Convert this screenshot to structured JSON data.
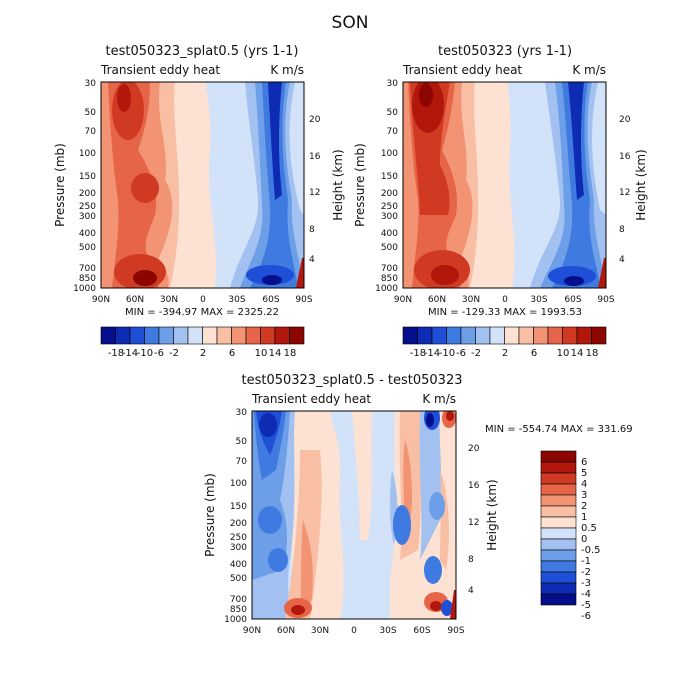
{
  "page_title": "SON",
  "chart_data": [
    {
      "type": "contour",
      "title": "test050323_splat0.5 (yrs 1-1)",
      "left_label": "Transient eddy heat",
      "right_label": "K m/s",
      "ylabel": "Pressure (mb)",
      "ylabel_right": "Height (km)",
      "x_ticks": [
        "90N",
        "60N",
        "30N",
        "0",
        "30S",
        "60S",
        "90S"
      ],
      "y_ticks": [
        "30",
        "50",
        "70",
        "100",
        "150",
        "200",
        "250",
        "300",
        "400",
        "500",
        "700",
        "850",
        "1000"
      ],
      "y_ticks_right": [
        "20",
        "16",
        "12",
        "8",
        "4"
      ],
      "min_max": "MIN = -394.97   MAX = 2325.22",
      "colorbar_labels": [
        "-18",
        "-14",
        "-10",
        "-6",
        "-2",
        "2",
        "6",
        "10",
        "14",
        "18"
      ]
    },
    {
      "type": "contour",
      "title": "test050323 (yrs 1-1)",
      "left_label": "Transient eddy heat",
      "right_label": "K m/s",
      "ylabel": "Pressure (mb)",
      "ylabel_right": "Height (km)",
      "x_ticks": [
        "90N",
        "60N",
        "30N",
        "0",
        "30S",
        "60S",
        "90S"
      ],
      "y_ticks": [
        "30",
        "50",
        "70",
        "100",
        "150",
        "200",
        "250",
        "300",
        "400",
        "500",
        "700",
        "850",
        "1000"
      ],
      "y_ticks_right": [
        "20",
        "16",
        "12",
        "8",
        "4"
      ],
      "min_max": "MIN = -129.33   MAX = 1993.53",
      "colorbar_labels": [
        "-18",
        "-14",
        "-10",
        "-6",
        "-2",
        "2",
        "6",
        "10",
        "14",
        "18"
      ]
    },
    {
      "type": "contour",
      "title": "test050323_splat0.5 - test050323",
      "left_label": "Transient eddy heat",
      "right_label": "K m/s",
      "ylabel": "Pressure (mb)",
      "ylabel_right": "Height (km)",
      "x_ticks": [
        "90N",
        "60N",
        "30N",
        "0",
        "30S",
        "60S",
        "90S"
      ],
      "y_ticks": [
        "30",
        "50",
        "70",
        "100",
        "150",
        "200",
        "250",
        "300",
        "400",
        "500",
        "700",
        "850",
        "1000"
      ],
      "y_ticks_right": [
        "20",
        "16",
        "12",
        "8",
        "4"
      ],
      "min_max": "MIN = -554.74   MAX = 331.69",
      "colorbar_labels": [
        "6",
        "5",
        "4",
        "3",
        "2",
        "1",
        "0.5",
        "0",
        "-0.5",
        "-1",
        "-2",
        "-3",
        "-4",
        "-5",
        "-6"
      ]
    }
  ],
  "colors": {
    "bar_top": [
      "#050f8c",
      "#0d2bb3",
      "#1f4fd6",
      "#3f7ae0",
      "#6d9ee8",
      "#a2c1f0",
      "#d2e2f8",
      "#fde2d4",
      "#f8bfa4",
      "#f29474",
      "#e66548",
      "#d03a23",
      "#b2170c",
      "#8c0500"
    ],
    "bar_diff": [
      "#8c0500",
      "#b2170c",
      "#d03a23",
      "#e66548",
      "#f29474",
      "#f8bfa4",
      "#fde2d4",
      "#d2e2f8",
      "#a2c1f0",
      "#6d9ee8",
      "#3f7ae0",
      "#1f4fd6",
      "#0d2bb3",
      "#050f8c"
    ]
  }
}
